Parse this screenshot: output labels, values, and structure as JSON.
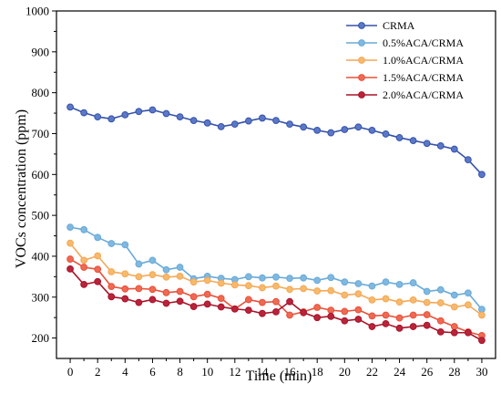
{
  "chart_data": {
    "type": "line",
    "xlabel": "Time (min)",
    "ylabel": "VOCs concentration (ppm)",
    "xlim": [
      -1,
      31
    ],
    "ylim": [
      150,
      1000
    ],
    "x_ticks": [
      0,
      2,
      4,
      6,
      8,
      10,
      12,
      14,
      16,
      18,
      20,
      22,
      24,
      26,
      28,
      30
    ],
    "y_ticks": [
      200,
      300,
      400,
      500,
      600,
      700,
      800,
      900,
      1000
    ],
    "legend_position": "top-right",
    "grid": false,
    "x": [
      0,
      1,
      2,
      3,
      4,
      5,
      6,
      7,
      8,
      9,
      10,
      11,
      12,
      13,
      14,
      15,
      16,
      17,
      18,
      19,
      20,
      21,
      22,
      23,
      24,
      25,
      26,
      27,
      28,
      29,
      30
    ],
    "series": [
      {
        "name": "CRMA",
        "color": "#3552a8",
        "marker_fill": "#5b78c8",
        "values": [
          765,
          751,
          741,
          736,
          746,
          754,
          758,
          749,
          741,
          732,
          726,
          717,
          723,
          731,
          738,
          732,
          723,
          716,
          708,
          702,
          710,
          716,
          708,
          699,
          690,
          683,
          676,
          670,
          662,
          636,
          600
        ]
      },
      {
        "name": "0.5%ACA/CRMA",
        "color": "#6aaad8",
        "marker_fill": "#7fb8e0",
        "values": [
          471,
          465,
          446,
          431,
          428,
          381,
          390,
          367,
          373,
          345,
          351,
          346,
          343,
          350,
          347,
          349,
          346,
          347,
          341,
          348,
          337,
          333,
          327,
          337,
          331,
          335,
          314,
          318,
          305,
          310,
          270
        ]
      },
      {
        "name": "1.0%ACA/CRMA",
        "color": "#f4a857",
        "marker_fill": "#f7b96b",
        "values": [
          432,
          390,
          401,
          362,
          357,
          350,
          355,
          349,
          351,
          337,
          341,
          334,
          330,
          328,
          323,
          327,
          319,
          321,
          315,
          316,
          305,
          308,
          293,
          296,
          288,
          293,
          287,
          286,
          276,
          281,
          256
        ]
      },
      {
        "name": "1.5%ACA/CRMA",
        "color": "#e9503a",
        "marker_fill": "#ef6a52",
        "values": [
          393,
          373,
          368,
          326,
          320,
          321,
          319,
          311,
          314,
          301,
          307,
          297,
          271,
          294,
          287,
          289,
          256,
          264,
          275,
          268,
          265,
          269,
          254,
          256,
          249,
          256,
          257,
          242,
          228,
          215,
          206
        ]
      },
      {
        "name": "2.0%ACA/CRMA",
        "color": "#a8142a",
        "marker_fill": "#b8243a",
        "values": [
          369,
          331,
          338,
          301,
          296,
          287,
          294,
          285,
          290,
          277,
          283,
          276,
          271,
          268,
          260,
          264,
          289,
          262,
          250,
          253,
          242,
          246,
          228,
          235,
          224,
          228,
          231,
          215,
          213,
          213,
          194
        ]
      }
    ]
  }
}
